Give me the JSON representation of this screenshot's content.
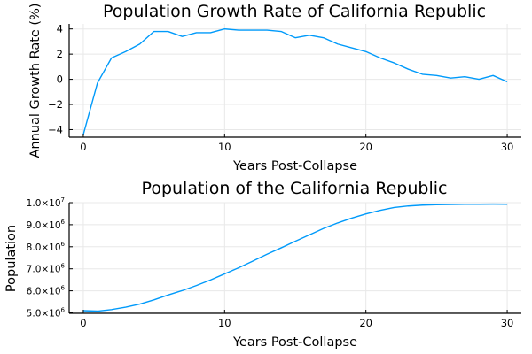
{
  "colors": {
    "series": "#009AFA"
  },
  "chart_data": [
    {
      "type": "line",
      "title": "Population Growth Rate of California Republic",
      "xlabel": "Years Post-Collapse",
      "ylabel": "Annual Growth Rate (%)",
      "xlim": [
        -1,
        31
      ],
      "ylim": [
        -4.6,
        4.4
      ],
      "grid": true,
      "legend": "none",
      "x_ticks": [
        {
          "value": 0,
          "label": "0"
        },
        {
          "value": 10,
          "label": "10"
        },
        {
          "value": 20,
          "label": "20"
        },
        {
          "value": 30,
          "label": "30"
        }
      ],
      "y_ticks": [
        {
          "value": -4,
          "label": "−4"
        },
        {
          "value": -2,
          "label": "−2"
        },
        {
          "value": 0,
          "label": "0"
        },
        {
          "value": 2,
          "label": "2"
        },
        {
          "value": 4,
          "label": "4"
        }
      ],
      "series": [
        {
          "x": [
            0,
            1,
            2,
            3,
            4,
            5,
            6,
            7,
            8,
            9,
            10,
            11,
            12,
            13,
            14,
            15,
            16,
            17,
            18,
            19,
            20,
            21,
            22,
            23,
            24,
            25,
            26,
            27,
            28,
            29,
            30
          ],
          "values": [
            -4.4,
            -0.3,
            1.7,
            2.2,
            2.8,
            3.8,
            3.8,
            3.4,
            3.7,
            3.7,
            4.0,
            3.9,
            3.9,
            3.9,
            3.8,
            3.3,
            3.5,
            3.3,
            2.8,
            2.5,
            2.2,
            1.7,
            1.3,
            0.8,
            0.4,
            0.3,
            0.1,
            0.2,
            0.0,
            0.3,
            -0.2
          ]
        }
      ]
    },
    {
      "type": "line",
      "title": "Population of the California Republic",
      "xlabel": "Years Post-Collapse",
      "ylabel": "Population",
      "xlim": [
        -1,
        31
      ],
      "ylim": [
        4980000,
        10000000
      ],
      "grid": true,
      "legend": "none",
      "x_ticks": [
        {
          "value": 0,
          "label": "0"
        },
        {
          "value": 10,
          "label": "10"
        },
        {
          "value": 20,
          "label": "20"
        },
        {
          "value": 30,
          "label": "30"
        }
      ],
      "y_ticks": [
        {
          "value": 5000000,
          "mantissa": "5.0×10",
          "exponent": "6"
        },
        {
          "value": 6000000,
          "mantissa": "6.0×10",
          "exponent": "6"
        },
        {
          "value": 7000000,
          "mantissa": "7.0×10",
          "exponent": "6"
        },
        {
          "value": 8000000,
          "mantissa": "8.0×10",
          "exponent": "6"
        },
        {
          "value": 9000000,
          "mantissa": "9.0×10",
          "exponent": "6"
        },
        {
          "value": 10000000,
          "mantissa": "1.0×10",
          "exponent": "7"
        }
      ],
      "series": [
        {
          "x": [
            0,
            1,
            2,
            3,
            4,
            5,
            6,
            7,
            8,
            9,
            10,
            11,
            12,
            13,
            14,
            15,
            16,
            17,
            18,
            19,
            20,
            21,
            22,
            23,
            24,
            25,
            26,
            27,
            28,
            29,
            30
          ],
          "values": [
            5100000,
            5080000,
            5150000,
            5260000,
            5400000,
            5590000,
            5810000,
            6010000,
            6240000,
            6490000,
            6770000,
            7050000,
            7350000,
            7660000,
            7950000,
            8250000,
            8540000,
            8830000,
            9080000,
            9300000,
            9490000,
            9650000,
            9780000,
            9850000,
            9890000,
            9910000,
            9920000,
            9930000,
            9930000,
            9935000,
            9930000
          ]
        }
      ]
    }
  ]
}
